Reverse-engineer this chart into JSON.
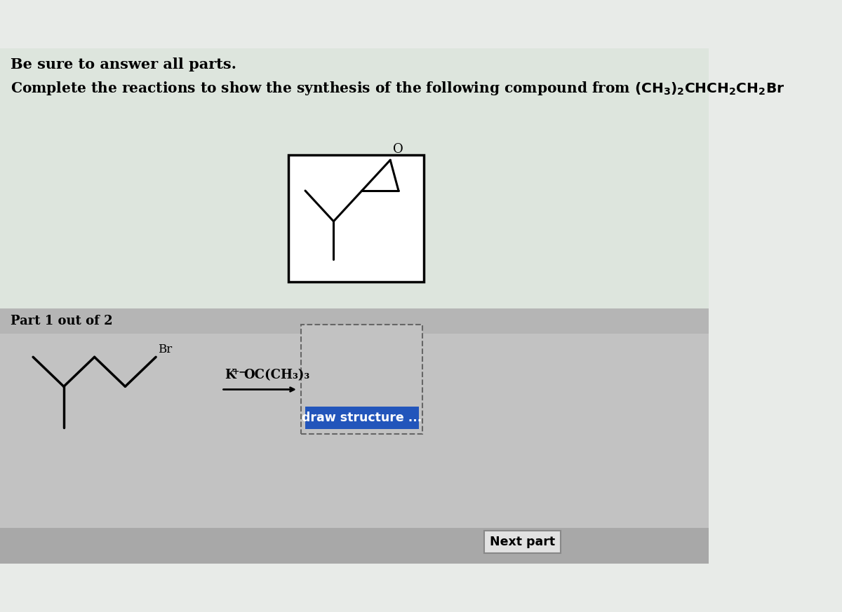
{
  "bg_top_color": "#e8ebe8",
  "bg_bottom_color": "#c0c0c0",
  "part_bar_color": "#b8b8b8",
  "bottom_bar_color": "#a0a0a0",
  "title1": "Be sure to answer all parts.",
  "title2_part1": "Complete the reactions to show the synthesis of the following compound from (CH",
  "title2_sub1": "3",
  "title2_part2": ")",
  "title2_sub2": "2",
  "title2_part3": "CHCH",
  "title2_sub3": "2",
  "title2_part4": "CH",
  "title2_sub4": "2",
  "title2_part5": "Br",
  "part_label": "Part 1 out of 2",
  "reagent_label": "K",
  "reagent_plus": "+",
  "reagent_bar": "¯",
  "reagent_rest": "OC(CH₃)₃",
  "draw_btn_text": "draw structure ...",
  "next_btn_text": "Next part",
  "draw_btn_color": "#2255bb",
  "mol_box_color": "#000000"
}
